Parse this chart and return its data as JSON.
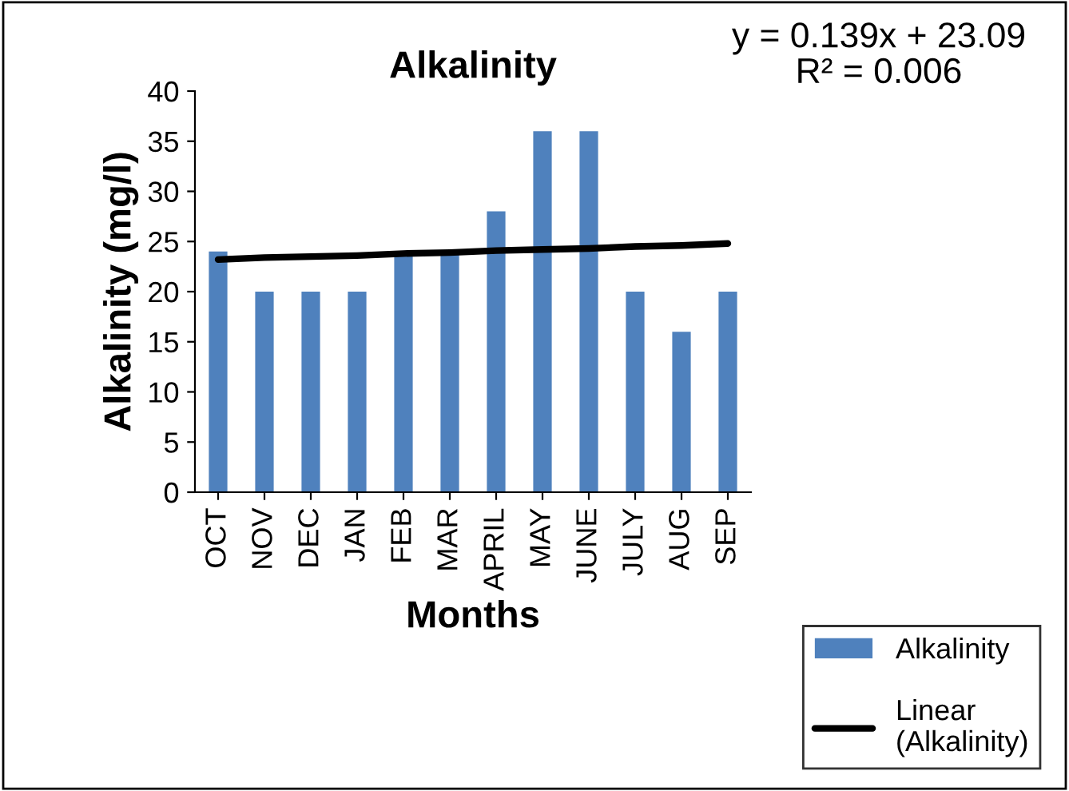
{
  "chart_data": {
    "type": "bar",
    "title": "Alkalinity",
    "xlabel": "Months",
    "ylabel": "Alkalinity (mg/l)",
    "categories": [
      "OCT",
      "NOV",
      "DEC",
      "JAN",
      "FEB",
      "MAR",
      "APRIL",
      "MAY",
      "JUNE",
      "JULY",
      "AUG",
      "SEP"
    ],
    "series": [
      {
        "name": "Alkalinity",
        "color": "#4f81bd",
        "values": [
          24,
          20,
          20,
          20,
          24,
          24,
          28,
          36,
          36,
          20,
          16,
          20
        ]
      },
      {
        "name": "Linear (Alkalinity)",
        "type": "line",
        "color": "#000000",
        "values": [
          23.2,
          23.4,
          23.5,
          23.6,
          23.8,
          23.9,
          24.1,
          24.2,
          24.3,
          24.5,
          24.6,
          24.8
        ]
      }
    ],
    "annotations": [
      "y = 0.139x + 23.09",
      "R² = 0.006"
    ],
    "ylim": [
      0,
      40
    ],
    "yticks": [
      0,
      5,
      10,
      15,
      20,
      25,
      30,
      35,
      40
    ],
    "grid": false,
    "legend": "bottom right"
  }
}
